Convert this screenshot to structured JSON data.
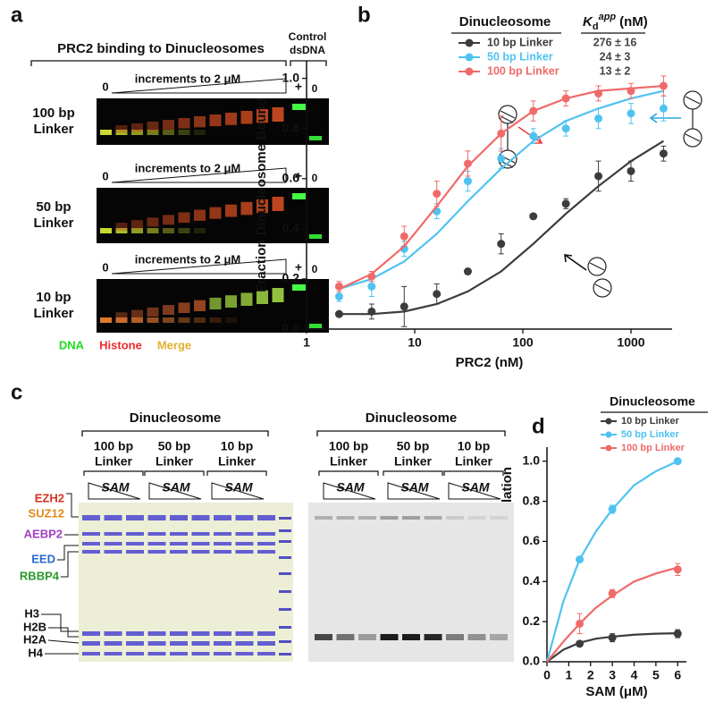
{
  "panel_a": {
    "letter": "a",
    "title": "PRC2 binding to Dinucleosomes",
    "control": [
      "Control",
      "dsDNA"
    ],
    "gels": [
      {
        "label": [
          "100 bp",
          "Linker"
        ],
        "start": "0",
        "ramp": "increments to 2 μM",
        "plus": "+",
        "zero": "0"
      },
      {
        "label": [
          "50 bp",
          "Linker"
        ],
        "start": "0",
        "ramp": "increments to 2 μM",
        "plus": "+",
        "zero": "0"
      },
      {
        "label": [
          "10 bp",
          "Linker"
        ],
        "start": "0",
        "ramp": "increments to 2 μM",
        "plus": "+",
        "zero": "0"
      }
    ],
    "channels": [
      {
        "name": "DNA",
        "color": "#22dd22"
      },
      {
        "name": "Histone",
        "color": "#ee2a2a"
      },
      {
        "name": "Merge",
        "color": "#e0b030"
      }
    ]
  },
  "chart_data": [
    {
      "type": "scatter",
      "panel": "b",
      "xlabel": "PRC2 (nM)",
      "ylabel": "Fraction Dinucleosome Bound",
      "xscale": "log",
      "xlim": [
        1,
        2400
      ],
      "xticks": [
        1,
        10,
        100,
        1000
      ],
      "ylim": [
        0,
        1.07
      ],
      "yticks": [
        {
          "value": 0,
          "label": "0.0"
        },
        {
          "value": 0.2,
          "label": "0.2"
        },
        {
          "value": 0.4,
          "label": "0.4"
        },
        {
          "value": 0.6,
          "label": "0.6"
        },
        {
          "value": 0.8,
          "label": "0.8"
        },
        {
          "value": 1,
          "label": "1.0"
        }
      ],
      "legend_title": "Dinucleosome",
      "kd_header": {
        "symbol": "K",
        "subscript": "d",
        "superscript": "app",
        "unit": "(nM)"
      },
      "x": [
        2,
        4,
        8,
        16,
        31,
        63,
        125,
        250,
        500,
        1000,
        2000
      ],
      "fit_x": [
        2,
        4,
        8,
        16,
        31,
        63,
        125,
        250,
        500,
        1000,
        2000
      ],
      "series": [
        {
          "name": "10 bp Linker",
          "color": "#3c3c3c",
          "kd": "276 ± 16",
          "values": [
            0.06,
            0.07,
            0.09,
            0.14,
            0.23,
            0.34,
            0.45,
            0.5,
            0.61,
            0.63,
            0.7
          ],
          "errors": [
            0.01,
            0.03,
            0.08,
            0.04,
            0.01,
            0.04,
            0.01,
            0.02,
            0.06,
            0.04,
            0.03
          ],
          "fit": [
            0.06,
            0.06,
            0.07,
            0.1,
            0.15,
            0.23,
            0.34,
            0.46,
            0.57,
            0.67,
            0.75
          ]
        },
        {
          "name": "50 bp Linker",
          "color": "#4fc3f0",
          "kd": "24 ± 3",
          "values": [
            0.13,
            0.17,
            0.32,
            0.47,
            0.59,
            0.68,
            0.77,
            0.8,
            0.84,
            0.86,
            0.88
          ],
          "errors": [
            0.02,
            0.04,
            0.03,
            0.03,
            0.04,
            0.04,
            0.03,
            0.03,
            0.04,
            0.04,
            0.05
          ],
          "fit": [
            0.16,
            0.2,
            0.27,
            0.38,
            0.51,
            0.64,
            0.75,
            0.83,
            0.88,
            0.92,
            0.95
          ]
        },
        {
          "name": "100 bp Linker",
          "color": "#f06a6a",
          "kd": "13 ± 2",
          "values": [
            0.17,
            0.21,
            0.37,
            0.54,
            0.66,
            0.78,
            0.87,
            0.92,
            0.94,
            0.95,
            0.97
          ],
          "errors": [
            0.02,
            0.02,
            0.04,
            0.05,
            0.05,
            0.07,
            0.04,
            0.03,
            0.03,
            0.03,
            0.04
          ],
          "fit": [
            0.16,
            0.22,
            0.33,
            0.49,
            0.65,
            0.78,
            0.87,
            0.92,
            0.95,
            0.96,
            0.97
          ]
        }
      ]
    },
    {
      "type": "scatter",
      "panel": "d",
      "xlabel": "SAM (μM)",
      "ylabel": "Relative H3K27 Methylation",
      "xlim": [
        0,
        6.4
      ],
      "xticks": [
        0,
        1,
        2,
        3,
        4,
        5,
        6
      ],
      "ylim": [
        0,
        1.07
      ],
      "yticks": [
        {
          "value": 0,
          "label": "0.0"
        },
        {
          "value": 0.2,
          "label": "0.2"
        },
        {
          "value": 0.4,
          "label": "0.4"
        },
        {
          "value": 0.6,
          "label": "0.6"
        },
        {
          "value": 0.8,
          "label": "0.8"
        },
        {
          "value": 1,
          "label": "1.0"
        }
      ],
      "legend_title": "Dinucleosome",
      "x": [
        1.5,
        3,
        6
      ],
      "fit_x": [
        0,
        0.75,
        1.5,
        2.25,
        3,
        4,
        5,
        6
      ],
      "series": [
        {
          "name": "10 bp Linker",
          "color": "#3c3c3c",
          "values": [
            0.09,
            0.12,
            0.14
          ],
          "errors": [
            0.01,
            0.02,
            0.02
          ],
          "fit": [
            0,
            0.06,
            0.095,
            0.115,
            0.125,
            0.135,
            0.14,
            0.142
          ]
        },
        {
          "name": "50 bp Linker",
          "color": "#4fc3f0",
          "values": [
            0.51,
            0.76,
            1.0
          ],
          "errors": [
            0.01,
            0.02,
            0.01
          ],
          "fit": [
            0,
            0.3,
            0.51,
            0.65,
            0.76,
            0.88,
            0.95,
            1.0
          ]
        },
        {
          "name": "100 bp Linker",
          "color": "#f06a6a",
          "values": [
            0.19,
            0.34,
            0.46
          ],
          "errors": [
            0.05,
            0.02,
            0.03
          ],
          "fit": [
            0,
            0.1,
            0.19,
            0.27,
            0.33,
            0.4,
            0.44,
            0.47
          ]
        }
      ]
    }
  ],
  "panel_c": {
    "letter": "c",
    "gels": [
      {
        "title": "Dinucleosome",
        "groups": [
          [
            "100 bp",
            "Linker"
          ],
          [
            "50 bp",
            "Linker"
          ],
          [
            "10 bp",
            "Linker"
          ]
        ],
        "ramp": [
          "SAM",
          "SAM",
          "SAM"
        ]
      },
      {
        "title": "Dinucleosome",
        "groups": [
          [
            "100 bp",
            "Linker"
          ],
          [
            "50 bp",
            "Linker"
          ],
          [
            "10 bp",
            "Linker"
          ]
        ],
        "ramp": [
          "SAM",
          "SAM",
          "SAM"
        ]
      }
    ],
    "proteins": [
      {
        "name": "EZH2",
        "color": "#d83020"
      },
      {
        "name": "SUZ12",
        "color": "#e08a1a"
      },
      {
        "name": "AEBP2",
        "color": "#a040c0"
      },
      {
        "name": "EED",
        "color": "#2a6ad0"
      },
      {
        "name": "RBBP4",
        "color": "#2a9a2a"
      },
      {
        "name": "H3",
        "color": "#111111"
      },
      {
        "name": "H2B",
        "color": "#111111"
      },
      {
        "name": "H2A",
        "color": "#111111"
      },
      {
        "name": "H4",
        "color": "#111111"
      }
    ]
  }
}
